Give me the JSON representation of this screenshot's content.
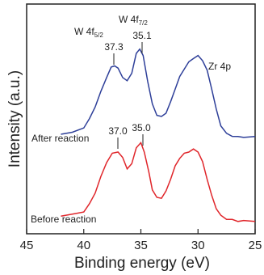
{
  "chart_data": {
    "type": "line",
    "xlabel": "Binding energy (eV)",
    "ylabel": "Intensity (a.u.)",
    "xlim": [
      45,
      25
    ],
    "x_reversed": true,
    "x_ticks": [
      "45",
      "40",
      "35",
      "30",
      "25"
    ],
    "y_ticks_shown": false,
    "grid": false,
    "colors": {
      "after": "#2e3f99",
      "before": "#e0262b",
      "axis": "#222222"
    },
    "series": [
      {
        "name": "After reaction",
        "label": "After reaction",
        "color": "#2e3f99",
        "x": [
          42.0,
          41.0,
          40.0,
          39.5,
          39.0,
          38.5,
          38.0,
          37.6,
          37.3,
          37.0,
          36.6,
          36.2,
          35.8,
          35.4,
          35.1,
          34.8,
          34.4,
          34.0,
          33.6,
          33.2,
          32.8,
          32.4,
          32.0,
          31.6,
          31.2,
          30.8,
          30.4,
          30.0,
          29.6,
          29.2,
          28.8,
          28.4,
          28.0,
          27.5,
          27.0,
          26.5,
          26.0,
          25.0
        ],
        "y": [
          0.12,
          0.13,
          0.18,
          0.26,
          0.38,
          0.52,
          0.66,
          0.75,
          0.77,
          0.74,
          0.66,
          0.62,
          0.7,
          0.88,
          0.93,
          0.86,
          0.62,
          0.4,
          0.3,
          0.28,
          0.32,
          0.42,
          0.55,
          0.66,
          0.74,
          0.8,
          0.84,
          0.86,
          0.82,
          0.72,
          0.55,
          0.35,
          0.2,
          0.12,
          0.1,
          0.09,
          0.09,
          0.09
        ]
      },
      {
        "name": "Before reaction",
        "label": "Before reaction",
        "color": "#e0262b",
        "x": [
          42.0,
          41.0,
          40.0,
          39.5,
          39.0,
          38.5,
          38.0,
          37.5,
          37.0,
          36.6,
          36.2,
          35.8,
          35.4,
          35.0,
          34.7,
          34.3,
          34.0,
          33.6,
          33.2,
          32.8,
          32.4,
          32.0,
          31.6,
          31.2,
          30.8,
          30.4,
          30.0,
          29.6,
          29.2,
          28.8,
          28.4,
          28.0,
          27.5,
          27.0,
          26.5,
          26.0,
          25.0
        ],
        "y": [
          0.11,
          0.12,
          0.15,
          0.22,
          0.33,
          0.48,
          0.62,
          0.7,
          0.72,
          0.66,
          0.56,
          0.6,
          0.76,
          0.8,
          0.72,
          0.52,
          0.36,
          0.28,
          0.28,
          0.34,
          0.46,
          0.58,
          0.66,
          0.7,
          0.72,
          0.74,
          0.72,
          0.62,
          0.46,
          0.3,
          0.18,
          0.11,
          0.08,
          0.07,
          0.06,
          0.06,
          0.06
        ]
      }
    ],
    "annotations": {
      "w4f52_base": "W 4f",
      "w4f52_sub": "5/2",
      "w4f72_base": "W 4f",
      "w4f72_sub": "7/2",
      "after_w52": "37.3",
      "after_w72": "35.1",
      "before_w52": "37.0",
      "before_w72": "35.0",
      "zr": "Zr 4p"
    }
  }
}
